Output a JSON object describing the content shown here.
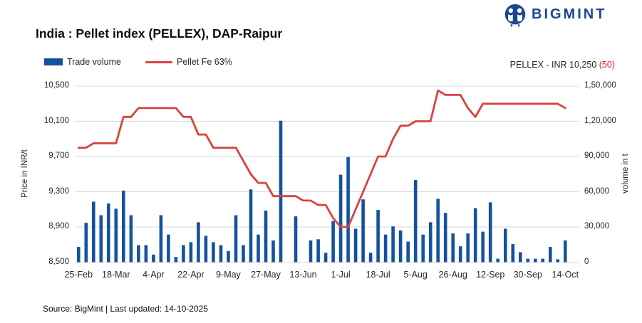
{
  "brand": {
    "name": "BIGMINT"
  },
  "title": "India : Pellet index (PELLEX), DAP-Raipur",
  "legend": {
    "trade_volume": "Trade volume",
    "pellet_fe": "Pellet Fe 63%"
  },
  "price_callout": {
    "text": "PELLEX - INR 10,250",
    "change": "(50)"
  },
  "axes": {
    "left": {
      "title": "Price in INR/t",
      "ticks": [
        "10,500",
        "10,100",
        "9,700",
        "9,300",
        "8,900",
        "8,500"
      ]
    },
    "right": {
      "title": "volume in t",
      "ticks": [
        "1,50,000",
        "1,20,000",
        "90,000",
        "60,000",
        "30,000",
        "0"
      ]
    },
    "x": {
      "tick_labels": [
        "25-Feb",
        "18-Mar",
        "4-Apr",
        "22-Apr",
        "9-May",
        "27-May",
        "13-Jun",
        "1-Jul",
        "18-Jul",
        "5-Aug",
        "26-Aug",
        "12-Sep",
        "30-Sep",
        "14-Oct"
      ],
      "tick_positions": [
        0,
        5,
        10,
        15,
        20,
        25,
        30,
        35,
        40,
        45,
        50,
        55,
        60,
        65
      ]
    }
  },
  "footer": {
    "source": "Source: BigMint | Last updated: 14-10-2025"
  },
  "colors": {
    "brand_blue": "#1b4693",
    "bar_blue": "#14529e",
    "line_red": "#d9423b",
    "callout_red": "#e02420",
    "grid": "#d9d9d9",
    "text": "#262626"
  },
  "chart_data": {
    "type": "bar",
    "title": "India : Pellet index (PELLEX), DAP-Raipur",
    "x_tick_labels": [
      "25-Feb",
      "18-Mar",
      "4-Apr",
      "22-Apr",
      "9-May",
      "27-May",
      "13-Jun",
      "1-Jul",
      "18-Jul",
      "5-Aug",
      "26-Aug",
      "12-Sep",
      "30-Sep",
      "14-Oct"
    ],
    "x_tick_positions": [
      0,
      5,
      10,
      15,
      20,
      25,
      30,
      35,
      40,
      45,
      50,
      55,
      60,
      65
    ],
    "n_points": 66,
    "left_axis": {
      "label": "Price in INR/t",
      "ylim": [
        8500,
        10500
      ],
      "tick_step": 400
    },
    "right_axis": {
      "label": "volume in t",
      "ylim": [
        0,
        150000
      ],
      "tick_step": 30000
    },
    "grid": true,
    "legend_position": "top-left",
    "latest": {
      "pellex_inr": 10250,
      "change": -50
    },
    "series": [
      {
        "name": "Trade volume",
        "type": "bar",
        "axis": "right",
        "color": "#14529e",
        "values": [
          13000,
          33500,
          51500,
          40000,
          50000,
          45500,
          61000,
          40000,
          14500,
          14500,
          6500,
          40000,
          23500,
          4500,
          14500,
          17000,
          34000,
          22500,
          17000,
          14500,
          9500,
          40000,
          14500,
          62000,
          23500,
          44000,
          18500,
          120500,
          0,
          39000,
          0,
          18500,
          19500,
          8000,
          35000,
          74500,
          89500,
          28500,
          53500,
          8000,
          44500,
          23500,
          30500,
          27000,
          17500,
          70000,
          23500,
          34000,
          54000,
          42000,
          24500,
          13500,
          24500,
          46000,
          26000,
          51000,
          3000,
          28500,
          15500,
          8500,
          3000,
          3000,
          3000,
          13000,
          2500,
          18500
        ]
      },
      {
        "name": "Pellet Fe 63%",
        "type": "line",
        "axis": "left",
        "color": "#d9423b",
        "values": [
          9800,
          9800,
          9850,
          9850,
          9850,
          9850,
          10150,
          10150,
          10250,
          10250,
          10250,
          10250,
          10250,
          10250,
          10150,
          10150,
          9950,
          9950,
          9800,
          9800,
          9800,
          9800,
          9650,
          9500,
          9400,
          9400,
          9250,
          9250,
          9250,
          9250,
          9200,
          9200,
          9150,
          9150,
          9000,
          8900,
          8900,
          9100,
          9300,
          9500,
          9700,
          9700,
          9900,
          10050,
          10050,
          10100,
          10100,
          10100,
          10450,
          10400,
          10400,
          10400,
          10250,
          10150,
          10300,
          10300,
          10300,
          10300,
          10300,
          10300,
          10300,
          10300,
          10300,
          10300,
          10300,
          10250
        ]
      }
    ]
  }
}
